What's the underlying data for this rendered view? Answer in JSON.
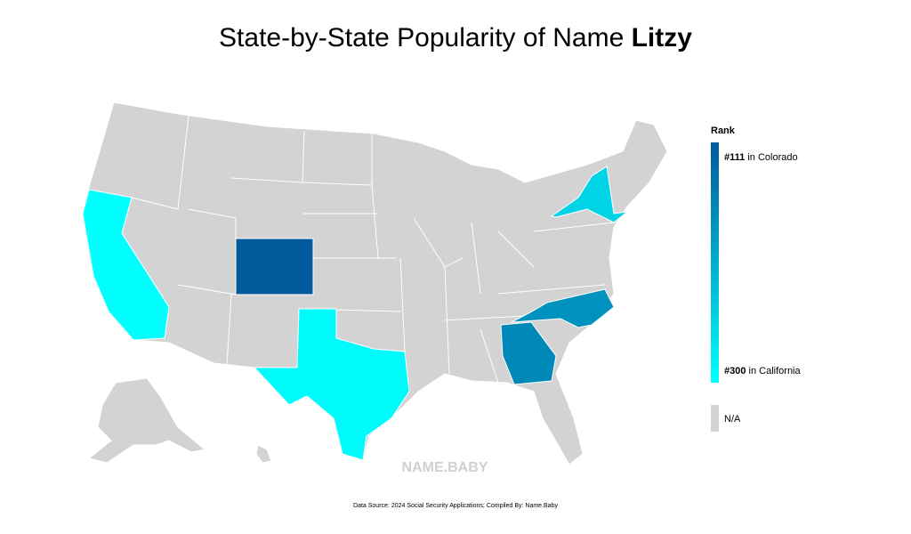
{
  "title": {
    "text": "State-by-State Popularity of Name ",
    "name": "Litzy"
  },
  "legend": {
    "title": "Rank",
    "top": {
      "rank": 111,
      "label": "#111",
      "text": " in Colorado"
    },
    "bottom": {
      "rank": 300,
      "label": "#300",
      "text": " in California"
    },
    "na": "N/A",
    "colors": [
      "#005a9c",
      "#00ffff"
    ],
    "na_color": "#d3d3d3"
  },
  "map": {
    "ranks": [
      111,
      300,
      295,
      250,
      175,
      165
    ]
  },
  "watermark": "NAME.BABY",
  "source": "Data Source: 2024 Social Security Applications; Compiled By: Name.Baby"
}
